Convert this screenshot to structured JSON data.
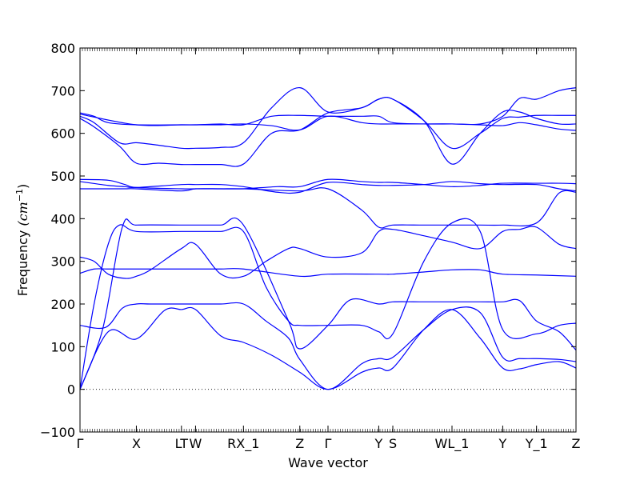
{
  "chart_data": {
    "type": "line",
    "title": "",
    "xlabel": "Wave vector",
    "ylabel": "Frequency (cm⁻¹)",
    "ylabel_text": "Frequency ",
    "ylabel_unit": "(cm",
    "ylabel_unit_exp": "−1",
    "ylabel_unit_close": ")",
    "ylim": [
      -100,
      800
    ],
    "yticks": [
      -100,
      0,
      100,
      200,
      300,
      400,
      500,
      600,
      700,
      800
    ],
    "xlim": [
      0,
      17.6
    ],
    "xticks": [
      {
        "x": 0,
        "label": "Γ"
      },
      {
        "x": 2.0,
        "label": "X"
      },
      {
        "x": 3.6,
        "label": "LT"
      },
      {
        "x": 4.1,
        "label": "W"
      },
      {
        "x": 5.8,
        "label": "RX_1"
      },
      {
        "x": 7.8,
        "label": "Z"
      },
      {
        "x": 8.8,
        "label": "Γ"
      },
      {
        "x": 10.6,
        "label": "Y"
      },
      {
        "x": 11.1,
        "label": "S"
      },
      {
        "x": 13.2,
        "label": "WL_1"
      },
      {
        "x": 15.0,
        "label": "Y"
      },
      {
        "x": 16.2,
        "label": "Y_1"
      },
      {
        "x": 17.6,
        "label": "Z"
      }
    ],
    "zero_line": true,
    "line_color": "#0000ff",
    "series": [
      {
        "x": [
          0,
          1,
          2,
          3,
          3.6,
          4.1,
          5,
          5.8,
          6.8,
          7.8,
          8.8,
          10,
          10.6,
          11.1,
          12.2,
          13.2,
          14.2,
          15,
          15.6,
          16.2,
          17,
          17.6
        ],
        "y": [
          0,
          135,
          118,
          185,
          187,
          187,
          125,
          110,
          80,
          40,
          0,
          40,
          50,
          50,
          140,
          187,
          120,
          50,
          48,
          58,
          65,
          50
        ]
      },
      {
        "x": [
          0,
          0.9,
          1.5,
          2,
          2.5,
          3.6,
          4.1,
          5,
          5.8,
          6.6,
          7.4,
          7.8,
          8.8,
          10,
          10.6,
          11.1,
          12.2,
          13.2,
          14.2,
          15,
          15.6,
          16.2,
          17,
          17.6
        ],
        "y": [
          150,
          145,
          190,
          200,
          200,
          200,
          200,
          200,
          200,
          160,
          120,
          70,
          0,
          60,
          72,
          75,
          140,
          187,
          180,
          75,
          72,
          72,
          70,
          65
        ]
      },
      {
        "x": [
          0,
          0.8,
          1.5,
          2,
          3.6,
          4.1,
          5,
          5.8,
          7.4,
          7.8,
          8.8,
          9.6,
          10.6,
          11.1,
          12.2,
          13.2,
          14.2,
          15,
          15.6,
          16.2,
          17,
          17.6
        ],
        "y": [
          0,
          140,
          380,
          385,
          385,
          385,
          385,
          385,
          160,
          95,
          150,
          210,
          200,
          205,
          205,
          205,
          205,
          205,
          208,
          160,
          135,
          92
        ]
      },
      {
        "x": [
          0,
          0.5,
          1,
          1.6,
          2,
          2.5,
          3.6,
          4.1,
          5,
          5.8,
          6.6,
          7.4,
          7.8,
          8.8,
          10,
          10.6,
          11.1,
          12.2,
          13.2,
          14.2,
          15,
          15.6,
          16.2,
          17,
          17.6
        ],
        "y": [
          310,
          300,
          270,
          260,
          265,
          280,
          330,
          340,
          270,
          265,
          300,
          330,
          330,
          310,
          320,
          370,
          375,
          360,
          345,
          330,
          370,
          375,
          380,
          340,
          330
        ]
      },
      {
        "x": [
          0,
          0.5,
          1,
          1.6,
          2,
          3.6,
          4.1,
          5,
          5.8,
          7.8,
          8.8,
          10.6,
          11.1,
          12.2,
          13.2,
          14.2,
          15,
          16.2,
          17.6
        ],
        "y": [
          272,
          282,
          282,
          282,
          282,
          282,
          282,
          282,
          282,
          265,
          270,
          270,
          270,
          275,
          280,
          280,
          270,
          268,
          265
        ]
      },
      {
        "x": [
          0,
          0.5,
          1,
          1.4,
          2,
          3.6,
          4.1,
          5,
          5.8,
          6.6,
          7.4,
          7.8,
          8.8,
          10,
          10.6,
          11.1,
          12.2,
          13.2,
          14.2,
          15,
          16.2,
          17,
          17.6
        ],
        "y": [
          0,
          200,
          340,
          385,
          370,
          370,
          370,
          370,
          370,
          240,
          160,
          150,
          150,
          150,
          135,
          130,
          300,
          390,
          370,
          140,
          130,
          150,
          155
        ]
      },
      {
        "x": [
          0,
          1,
          1.6,
          2,
          3.6,
          4.1,
          5,
          5.8,
          7.8,
          8.8,
          10,
          10.6,
          11.1,
          12.2,
          13.2,
          14.2,
          15,
          16.2,
          17,
          17.6
        ],
        "y": [
          470,
          470,
          470,
          470,
          465,
          470,
          470,
          470,
          465,
          470,
          420,
          380,
          385,
          385,
          385,
          385,
          385,
          390,
          460,
          462
        ]
      },
      {
        "x": [
          0,
          1,
          1.6,
          2,
          3.6,
          4.1,
          5,
          5.8,
          7,
          7.8,
          8.8,
          10,
          10.6,
          11.1,
          12.2,
          13.2,
          14.2,
          15,
          16.2,
          17,
          17.6
        ],
        "y": [
          487,
          478,
          475,
          473,
          480,
          480,
          480,
          475,
          462,
          462,
          485,
          480,
          478,
          478,
          480,
          487,
          482,
          480,
          480,
          470,
          465
        ]
      },
      {
        "x": [
          0,
          1,
          1.6,
          2,
          3.6,
          4.1,
          5,
          5.8,
          7,
          7.8,
          8.8,
          10,
          10.6,
          11.1,
          12.2,
          13.2,
          14.2,
          15,
          16.2,
          17,
          17.6
        ],
        "y": [
          492,
          490,
          480,
          473,
          470,
          470,
          470,
          470,
          475,
          475,
          492,
          487,
          485,
          485,
          480,
          475,
          478,
          483,
          483,
          483,
          482
        ]
      },
      {
        "x": [
          0,
          0.5,
          1.4,
          2,
          2.8,
          3.6,
          4.1,
          5,
          5.8,
          6.8,
          7.8,
          8.8,
          10,
          10.6,
          11.1,
          12.2,
          13.2,
          14.2,
          15,
          15.6,
          16.2,
          17,
          17.6
        ],
        "y": [
          635,
          615,
          570,
          530,
          530,
          527,
          527,
          527,
          528,
          600,
          608,
          648,
          660,
          680,
          680,
          630,
          528,
          600,
          650,
          650,
          635,
          622,
          622
        ]
      },
      {
        "x": [
          0,
          0.5,
          1.4,
          2,
          2.8,
          3.6,
          4.1,
          5,
          5.8,
          6.8,
          7.8,
          8.8,
          10,
          10.6,
          11.1,
          12.2,
          13.2,
          14.2,
          15,
          15.6,
          16.2,
          17,
          17.6
        ],
        "y": [
          640,
          625,
          578,
          578,
          572,
          565,
          565,
          567,
          578,
          660,
          707,
          650,
          660,
          680,
          680,
          630,
          565,
          600,
          635,
          638,
          642,
          642,
          642
        ]
      },
      {
        "x": [
          0,
          0.5,
          1,
          2,
          3.6,
          4.1,
          5,
          5.8,
          6.8,
          7.8,
          8.8,
          10,
          10.6,
          11.1,
          12.2,
          13.2,
          14.2,
          15,
          15.6,
          16.2,
          17,
          17.6
        ],
        "y": [
          648,
          640,
          625,
          620,
          620,
          620,
          620,
          622,
          618,
          608,
          640,
          625,
          622,
          622,
          622,
          622,
          620,
          618,
          625,
          620,
          610,
          607
        ]
      },
      {
        "x": [
          0,
          2,
          3.6,
          4.1,
          5,
          5.8,
          6.8,
          7.8,
          8.8,
          10,
          10.6,
          11.1,
          12.2,
          13.2,
          14.2,
          15,
          15.6,
          16.2,
          17,
          17.6
        ],
        "y": [
          645,
          620,
          620,
          620,
          622,
          620,
          640,
          642,
          640,
          640,
          640,
          625,
          622,
          622,
          622,
          640,
          682,
          680,
          700,
          707
        ]
      }
    ]
  }
}
